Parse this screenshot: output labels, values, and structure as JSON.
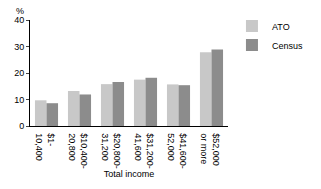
{
  "chart_data": {
    "type": "bar",
    "y_label": "%",
    "x_label": "Total income",
    "categories": [
      "$1-\n10,400",
      "$10,400-\n20,800",
      "$20,800-\n31,200",
      "$31,200-\n41,600",
      "$41,600-\n52,000",
      "$52,000\nor more"
    ],
    "series": [
      {
        "name": "ATO",
        "color": "#c8c8c8",
        "values": [
          9.7,
          13.2,
          15.8,
          17.5,
          15.7,
          27.8
        ]
      },
      {
        "name": "Census",
        "color": "#8c8c8c",
        "values": [
          8.6,
          11.9,
          16.6,
          18.2,
          15.4,
          28.9
        ]
      }
    ],
    "ylim": [
      0,
      40
    ],
    "yticks": [
      0,
      10,
      20,
      30,
      40
    ],
    "grid": false,
    "legend": "top right"
  }
}
